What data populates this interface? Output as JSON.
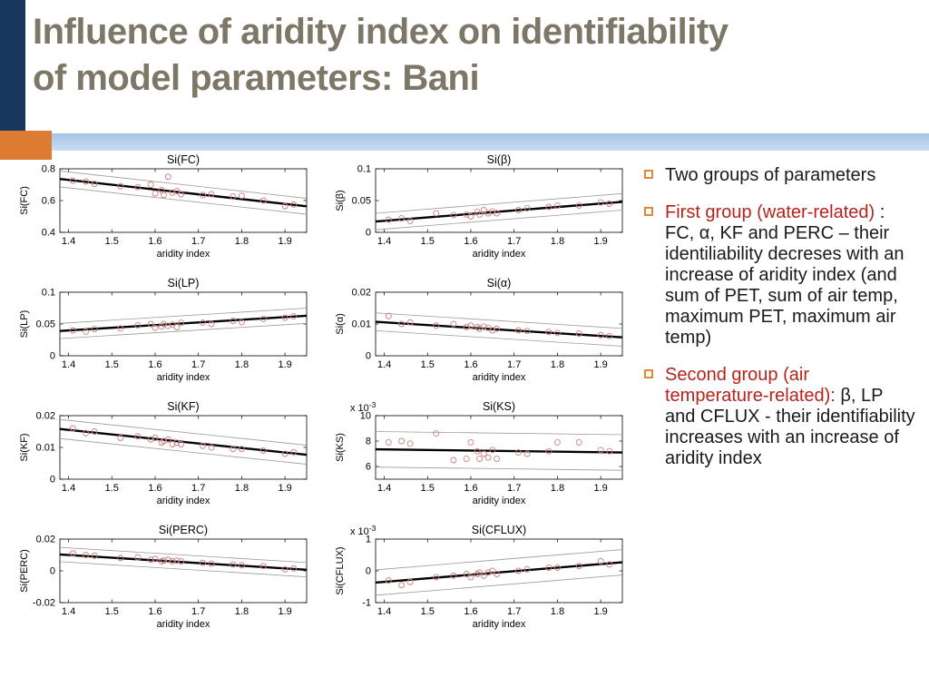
{
  "slide": {
    "title_line1": "Influence of aridity index on identifiability",
    "title_line2": "of model parameters: Bani"
  },
  "colors": {
    "title": "#7d7767",
    "navy": "#17375e",
    "orange": "#dd7b33",
    "bullet_orange": "#e0873a",
    "blue1": "#a3c4e8",
    "blue2": "#c9ddf2",
    "red_text": "#b5231a",
    "body_text": "#1a1a1a",
    "scatter": "#cc8383"
  },
  "bullets": [
    {
      "segments": [
        {
          "text": "Two groups of parameters",
          "style": "normal"
        }
      ]
    },
    {
      "segments": [
        {
          "text": "First group (water-related) ",
          "style": "red"
        },
        {
          "text": ": FC, α, KF and PERC – their identiliability decreses with an increase of aridity index (and sum of PET, sum of air temp, maximum PET, maximum air temp)",
          "style": "normal"
        }
      ]
    },
    {
      "segments": [
        {
          "text": "Second group (air temperature-related): ",
          "style": "red"
        },
        {
          "text": "β, LP and CFLUX - their identifiability increases with an increase of aridity index",
          "style": "normal"
        }
      ]
    }
  ],
  "chart_data": [
    {
      "type": "scatter",
      "title": "Si(FC)",
      "ylabel": "Si(FC)",
      "xlabel": "aridity index",
      "xlim": [
        1.38,
        1.95
      ],
      "xticks": [
        1.4,
        1.5,
        1.6,
        1.7,
        1.8,
        1.9
      ],
      "xtick_labels": [
        "1.4",
        "1.5",
        "1.6",
        "1.7",
        "1.8",
        "1.9"
      ],
      "ylim": [
        0.4,
        0.8
      ],
      "yticks": [
        0.4,
        0.6,
        0.8
      ],
      "ytick_labels": [
        "0.4",
        "0.6",
        "0.8"
      ],
      "y_scale_label": null,
      "trend": [
        0.736,
        0.564
      ],
      "band_offset": 0.05,
      "points_x": [
        1.41,
        1.44,
        1.46,
        1.52,
        1.56,
        1.59,
        1.6,
        1.615,
        1.62,
        1.63,
        1.64,
        1.65,
        1.66,
        1.71,
        1.73,
        1.78,
        1.8,
        1.85,
        1.9,
        1.92
      ],
      "points_y": [
        0.725,
        0.72,
        0.705,
        0.69,
        0.685,
        0.7,
        0.645,
        0.665,
        0.635,
        0.75,
        0.65,
        0.66,
        0.64,
        0.635,
        0.64,
        0.625,
        0.63,
        0.6,
        0.565,
        0.575
      ]
    },
    {
      "type": "scatter",
      "title": "Si(β)",
      "ylabel": "Si(β)",
      "xlabel": "aridity index",
      "xlim": [
        1.38,
        1.95
      ],
      "xticks": [
        1.4,
        1.5,
        1.6,
        1.7,
        1.8,
        1.9
      ],
      "xtick_labels": [
        "1.4",
        "1.5",
        "1.6",
        "1.7",
        "1.8",
        "1.9"
      ],
      "ylim": [
        0,
        0.1
      ],
      "yticks": [
        0,
        0.05,
        0.1
      ],
      "ytick_labels": [
        "0",
        "0.05",
        "0.1"
      ],
      "y_scale_label": null,
      "trend": [
        0.017,
        0.048
      ],
      "band_offset": 0.013,
      "points_x": [
        1.41,
        1.44,
        1.46,
        1.52,
        1.56,
        1.59,
        1.6,
        1.615,
        1.62,
        1.63,
        1.64,
        1.65,
        1.66,
        1.71,
        1.73,
        1.78,
        1.8,
        1.85,
        1.9,
        1.92
      ],
      "points_y": [
        0.02,
        0.022,
        0.018,
        0.03,
        0.027,
        0.028,
        0.025,
        0.032,
        0.028,
        0.035,
        0.03,
        0.033,
        0.03,
        0.035,
        0.038,
        0.04,
        0.042,
        0.042,
        0.047,
        0.045
      ]
    },
    {
      "type": "scatter",
      "title": "Si(LP)",
      "ylabel": "Si(LP)",
      "xlabel": "aridity index",
      "xlim": [
        1.38,
        1.95
      ],
      "xticks": [
        1.4,
        1.5,
        1.6,
        1.7,
        1.8,
        1.9
      ],
      "xtick_labels": [
        "1.4",
        "1.5",
        "1.6",
        "1.7",
        "1.8",
        "1.9"
      ],
      "ylim": [
        0,
        0.1
      ],
      "yticks": [
        0,
        0.05,
        0.1
      ],
      "ytick_labels": [
        "0",
        "0.05",
        "0.1"
      ],
      "y_scale_label": null,
      "trend": [
        0.039,
        0.063
      ],
      "band_offset": 0.012,
      "points_x": [
        1.41,
        1.44,
        1.46,
        1.52,
        1.56,
        1.59,
        1.6,
        1.615,
        1.62,
        1.63,
        1.64,
        1.65,
        1.66,
        1.71,
        1.73,
        1.78,
        1.8,
        1.85,
        1.9,
        1.92
      ],
      "points_y": [
        0.04,
        0.038,
        0.042,
        0.043,
        0.048,
        0.05,
        0.044,
        0.046,
        0.05,
        0.047,
        0.049,
        0.045,
        0.052,
        0.052,
        0.05,
        0.055,
        0.053,
        0.058,
        0.06,
        0.062
      ]
    },
    {
      "type": "scatter",
      "title": "Si(α)",
      "ylabel": "Si(α)",
      "xlabel": "aridity index",
      "xlim": [
        1.38,
        1.95
      ],
      "xticks": [
        1.4,
        1.5,
        1.6,
        1.7,
        1.8,
        1.9
      ],
      "xtick_labels": [
        "1.4",
        "1.5",
        "1.6",
        "1.7",
        "1.8",
        "1.9"
      ],
      "ylim": [
        0,
        0.02
      ],
      "yticks": [
        0,
        0.01,
        0.02
      ],
      "ytick_labels": [
        "0",
        "0.01",
        "0.02"
      ],
      "y_scale_label": null,
      "trend": [
        0.0107,
        0.0058
      ],
      "band_offset": 0.0028,
      "points_x": [
        1.41,
        1.44,
        1.46,
        1.52,
        1.56,
        1.59,
        1.6,
        1.615,
        1.62,
        1.63,
        1.64,
        1.65,
        1.66,
        1.71,
        1.73,
        1.78,
        1.8,
        1.85,
        1.9,
        1.92
      ],
      "points_y": [
        0.0125,
        0.01,
        0.0105,
        0.0095,
        0.01,
        0.009,
        0.0095,
        0.009,
        0.0085,
        0.0092,
        0.0088,
        0.008,
        0.0085,
        0.008,
        0.0078,
        0.0075,
        0.0072,
        0.007,
        0.0065,
        0.0062
      ]
    },
    {
      "type": "scatter",
      "title": "Si(KF)",
      "ylabel": "Si(KF)",
      "xlabel": "aridity index",
      "xlim": [
        1.38,
        1.95
      ],
      "xticks": [
        1.4,
        1.5,
        1.6,
        1.7,
        1.8,
        1.9
      ],
      "xtick_labels": [
        "1.4",
        "1.5",
        "1.6",
        "1.7",
        "1.8",
        "1.9"
      ],
      "ylim": [
        0,
        0.02
      ],
      "yticks": [
        0,
        0.01,
        0.02
      ],
      "ytick_labels": [
        "0",
        "0.01",
        "0.02"
      ],
      "y_scale_label": null,
      "trend": [
        0.0158,
        0.0077
      ],
      "band_offset": 0.003,
      "points_x": [
        1.41,
        1.44,
        1.46,
        1.52,
        1.56,
        1.59,
        1.6,
        1.615,
        1.62,
        1.63,
        1.64,
        1.65,
        1.66,
        1.71,
        1.73,
        1.78,
        1.8,
        1.85,
        1.9,
        1.92
      ],
      "points_y": [
        0.016,
        0.0145,
        0.015,
        0.013,
        0.0135,
        0.0125,
        0.013,
        0.0115,
        0.012,
        0.0125,
        0.011,
        0.0115,
        0.011,
        0.0105,
        0.01,
        0.0095,
        0.0095,
        0.009,
        0.008,
        0.0085
      ]
    },
    {
      "type": "scatter",
      "title": "Si(KS)",
      "ylabel": "Si(KS)",
      "xlabel": "aridity index",
      "xlim": [
        1.38,
        1.95
      ],
      "xticks": [
        1.4,
        1.5,
        1.6,
        1.7,
        1.8,
        1.9
      ],
      "xtick_labels": [
        "1.4",
        "1.5",
        "1.6",
        "1.7",
        "1.8",
        "1.9"
      ],
      "ylim": [
        5,
        10
      ],
      "yticks": [
        6,
        8,
        10
      ],
      "ytick_labels": [
        "6",
        "8",
        "10"
      ],
      "y_scale_label": "x 10^-3",
      "trend": [
        7.35,
        7.1
      ],
      "band_offset": 1.4,
      "points_x": [
        1.41,
        1.44,
        1.46,
        1.52,
        1.56,
        1.59,
        1.6,
        1.615,
        1.62,
        1.63,
        1.64,
        1.65,
        1.66,
        1.71,
        1.73,
        1.78,
        1.8,
        1.85,
        1.9,
        1.92
      ],
      "points_y": [
        7.9,
        8.0,
        7.8,
        8.6,
        6.5,
        6.6,
        7.9,
        7.2,
        6.6,
        7.0,
        6.7,
        7.3,
        6.6,
        7.1,
        7.0,
        7.2,
        7.9,
        7.9,
        7.3,
        7.2
      ]
    },
    {
      "type": "scatter",
      "title": "Si(PERC)",
      "ylabel": "Si(PERC)",
      "xlabel": "aridity index",
      "xlim": [
        1.38,
        1.95
      ],
      "xticks": [
        1.4,
        1.5,
        1.6,
        1.7,
        1.8,
        1.9
      ],
      "xtick_labels": [
        "1.4",
        "1.5",
        "1.6",
        "1.7",
        "1.8",
        "1.9"
      ],
      "ylim": [
        -0.02,
        0.02
      ],
      "yticks": [
        -0.02,
        0,
        0.02
      ],
      "ytick_labels": [
        "-0.02",
        "0",
        "0.02"
      ],
      "y_scale_label": null,
      "trend": [
        0.0103,
        0.0007
      ],
      "band_offset": 0.0045,
      "points_x": [
        1.41,
        1.44,
        1.46,
        1.52,
        1.56,
        1.59,
        1.6,
        1.615,
        1.62,
        1.63,
        1.64,
        1.65,
        1.66,
        1.71,
        1.73,
        1.78,
        1.8,
        1.85,
        1.9,
        1.92
      ],
      "points_y": [
        0.011,
        0.01,
        0.0095,
        0.008,
        0.0085,
        0.007,
        0.0075,
        0.006,
        0.0065,
        0.007,
        0.006,
        0.0065,
        0.006,
        0.005,
        0.0045,
        0.004,
        0.0035,
        0.003,
        0.001,
        0.0015
      ]
    },
    {
      "type": "scatter",
      "title": "Si(CFLUX)",
      "ylabel": "Si(CFLUX)",
      "xlabel": "aridity index",
      "xlim": [
        1.38,
        1.95
      ],
      "xticks": [
        1.4,
        1.5,
        1.6,
        1.7,
        1.8,
        1.9
      ],
      "xtick_labels": [
        "1.4",
        "1.5",
        "1.6",
        "1.7",
        "1.8",
        "1.9"
      ],
      "ylim": [
        -1,
        1
      ],
      "yticks": [
        -1,
        0,
        1
      ],
      "ytick_labels": [
        "-1",
        "0",
        "1"
      ],
      "y_scale_label": "x 10^-3",
      "trend": [
        -0.37,
        0.27
      ],
      "band_offset": 0.4,
      "points_x": [
        1.41,
        1.44,
        1.46,
        1.52,
        1.56,
        1.59,
        1.6,
        1.615,
        1.62,
        1.63,
        1.64,
        1.65,
        1.66,
        1.71,
        1.73,
        1.78,
        1.8,
        1.85,
        1.9,
        1.92
      ],
      "points_y": [
        -0.3,
        -0.45,
        -0.35,
        -0.2,
        -0.15,
        -0.1,
        -0.2,
        -0.1,
        -0.05,
        -0.15,
        -0.05,
        0.0,
        -0.1,
        0.0,
        0.05,
        0.1,
        0.1,
        0.15,
        0.3,
        0.2
      ]
    }
  ]
}
